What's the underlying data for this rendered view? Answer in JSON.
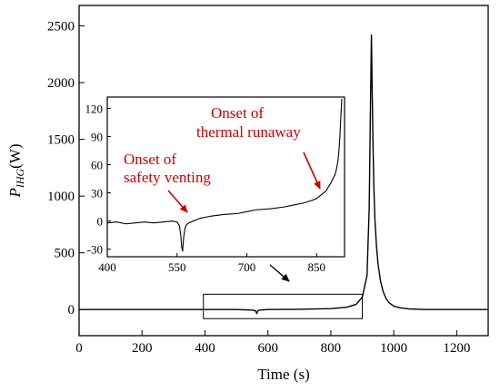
{
  "chart_data": [
    {
      "id": "main",
      "type": "line",
      "xlabel": "Time (s)",
      "ylabel_main": "P",
      "ylabel_sub": "IHG",
      "ylabel_unit": "(W)",
      "xlim": [
        0,
        1300
      ],
      "ylim": [
        -230,
        2680
      ],
      "xticks": [
        0,
        200,
        400,
        600,
        800,
        1000,
        1200
      ],
      "yticks": [
        0,
        500,
        1000,
        1500,
        2000,
        2500
      ],
      "series": [
        {
          "x": [
            0,
            100,
            200,
            300,
            400,
            500,
            550,
            560,
            565,
            568,
            572,
            580,
            600,
            700,
            800,
            850,
            880,
            900,
            915,
            922,
            926,
            929,
            931,
            934,
            937,
            940,
            945,
            950,
            958,
            966,
            975,
            985,
            1000,
            1020,
            1050,
            1100,
            1200,
            1300
          ],
          "y": [
            0,
            0,
            0,
            0,
            0,
            0,
            -5,
            -10,
            -35,
            -10,
            -6,
            -4,
            0,
            2,
            8,
            20,
            45,
            110,
            300,
            900,
            1800,
            2420,
            2000,
            1450,
            1050,
            800,
            560,
            400,
            250,
            160,
            100,
            60,
            30,
            15,
            5,
            0,
            0,
            0
          ]
        }
      ],
      "highlight_box": {
        "x": [
          395,
          900
        ],
        "y": [
          -80,
          135
        ]
      }
    },
    {
      "id": "inset",
      "type": "line",
      "xlim": [
        400,
        910
      ],
      "ylim": [
        -38,
        132
      ],
      "xticks": [
        400,
        550,
        700,
        850
      ],
      "yticks": [
        -30,
        0,
        30,
        60,
        90,
        120
      ],
      "series": [
        {
          "x": [
            400,
            420,
            440,
            460,
            480,
            500,
            520,
            540,
            550,
            555,
            558,
            560,
            562,
            564,
            567,
            570,
            575,
            580,
            600,
            620,
            650,
            680,
            700,
            720,
            750,
            780,
            800,
            820,
            840,
            850,
            860,
            870,
            875,
            880,
            885,
            890,
            893,
            896,
            898,
            900,
            902,
            904
          ],
          "y": [
            -2,
            -1,
            -3,
            -2,
            -1,
            -2,
            -1,
            0,
            -1,
            -5,
            -15,
            -28,
            -32,
            -18,
            -8,
            -4,
            -2,
            -1,
            3,
            5,
            7,
            8,
            10,
            12,
            13,
            15,
            17,
            19,
            22,
            24,
            28,
            32,
            36,
            40,
            45,
            50,
            56,
            65,
            75,
            90,
            110,
            130
          ]
        }
      ],
      "annotations": [
        {
          "line1": "Onset of",
          "line2": "safety venting",
          "x": 560,
          "y": -28
        },
        {
          "line1": "Onset of",
          "line2": "thermal runaway",
          "x": 868,
          "y": 30
        }
      ]
    }
  ]
}
